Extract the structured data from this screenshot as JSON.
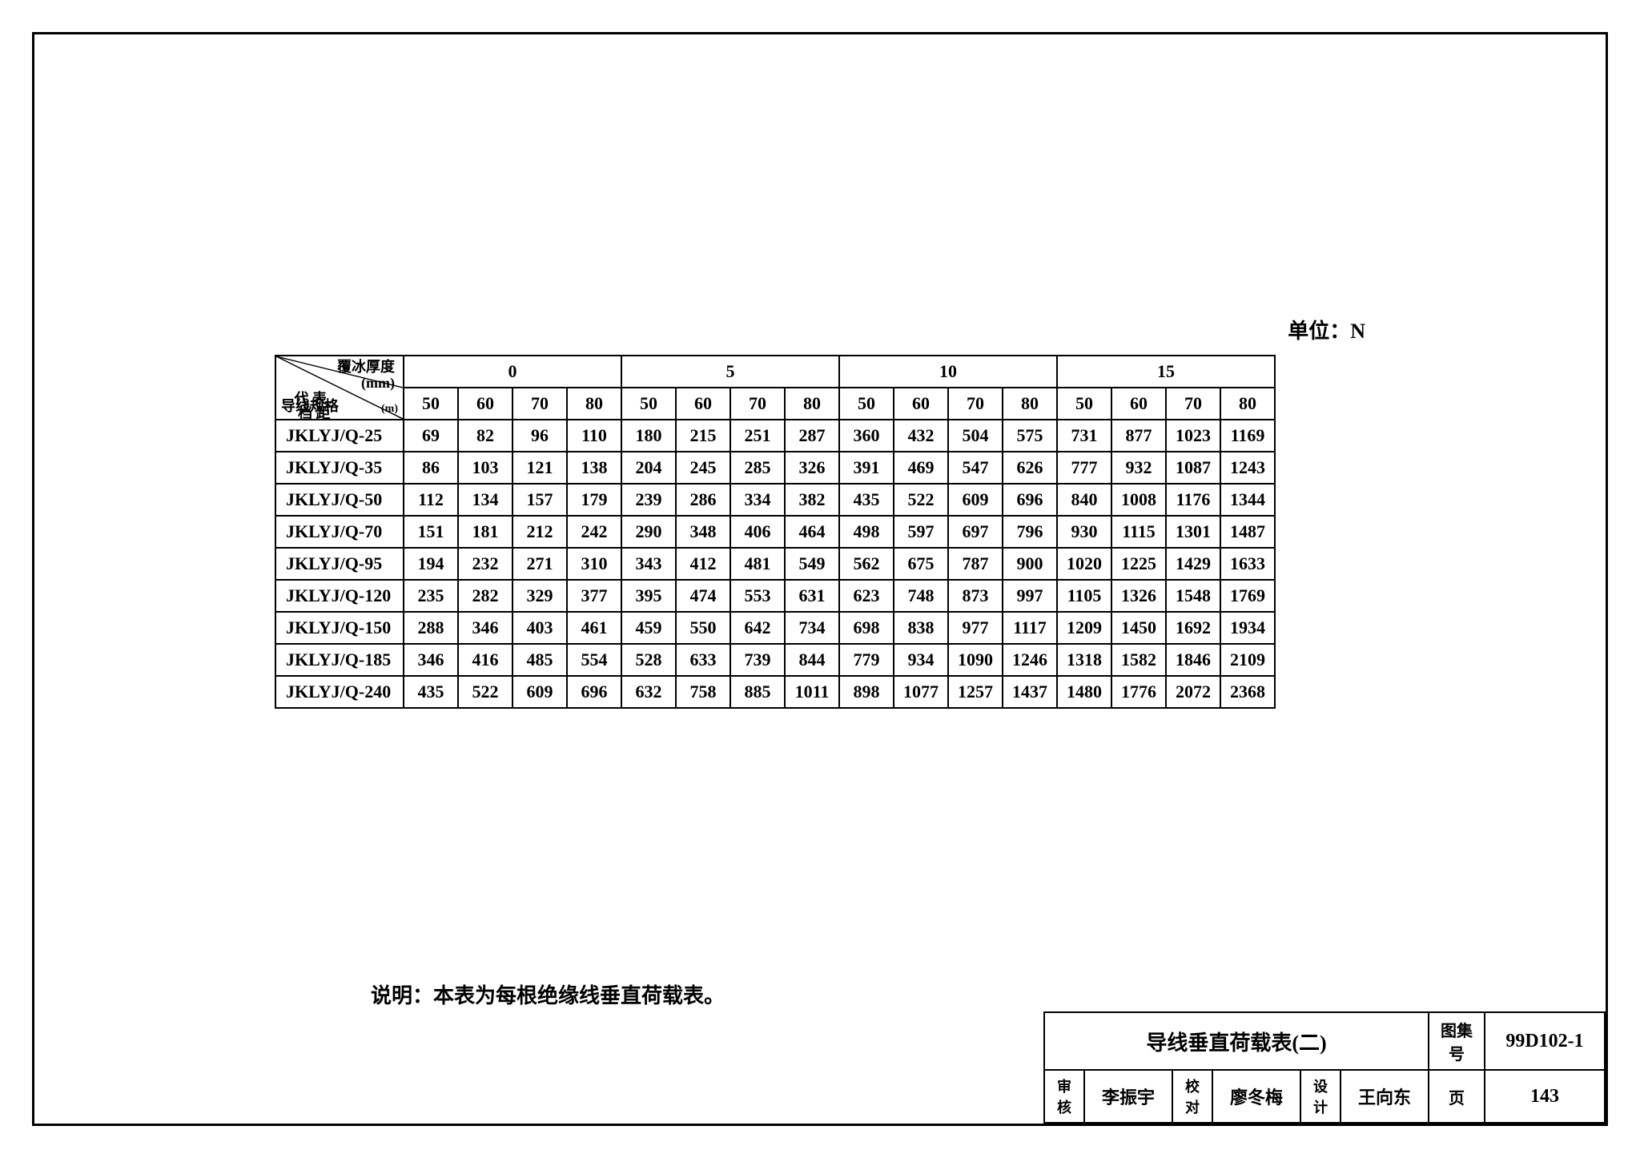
{
  "unit_label": "单位：N",
  "header": {
    "diag_top_line1": "覆冰厚度",
    "diag_top_line2": "(mm)",
    "diag_mid_line1": "代 表",
    "diag_mid_line2": "档 距",
    "diag_bot_left": "导线规格",
    "diag_bot_right": "(m)",
    "ice_groups": [
      "0",
      "5",
      "10",
      "15"
    ],
    "spans": [
      "50",
      "60",
      "70",
      "80"
    ]
  },
  "rows": [
    {
      "label": "JKLYJ/Q-25",
      "v": [
        "69",
        "82",
        "96",
        "110",
        "180",
        "215",
        "251",
        "287",
        "360",
        "432",
        "504",
        "575",
        "731",
        "877",
        "1023",
        "1169"
      ]
    },
    {
      "label": "JKLYJ/Q-35",
      "v": [
        "86",
        "103",
        "121",
        "138",
        "204",
        "245",
        "285",
        "326",
        "391",
        "469",
        "547",
        "626",
        "777",
        "932",
        "1087",
        "1243"
      ]
    },
    {
      "label": "JKLYJ/Q-50",
      "v": [
        "112",
        "134",
        "157",
        "179",
        "239",
        "286",
        "334",
        "382",
        "435",
        "522",
        "609",
        "696",
        "840",
        "1008",
        "1176",
        "1344"
      ]
    },
    {
      "label": "JKLYJ/Q-70",
      "v": [
        "151",
        "181",
        "212",
        "242",
        "290",
        "348",
        "406",
        "464",
        "498",
        "597",
        "697",
        "796",
        "930",
        "1115",
        "1301",
        "1487"
      ]
    },
    {
      "label": "JKLYJ/Q-95",
      "v": [
        "194",
        "232",
        "271",
        "310",
        "343",
        "412",
        "481",
        "549",
        "562",
        "675",
        "787",
        "900",
        "1020",
        "1225",
        "1429",
        "1633"
      ]
    },
    {
      "label": "JKLYJ/Q-120",
      "v": [
        "235",
        "282",
        "329",
        "377",
        "395",
        "474",
        "553",
        "631",
        "623",
        "748",
        "873",
        "997",
        "1105",
        "1326",
        "1548",
        "1769"
      ]
    },
    {
      "label": "JKLYJ/Q-150",
      "v": [
        "288",
        "346",
        "403",
        "461",
        "459",
        "550",
        "642",
        "734",
        "698",
        "838",
        "977",
        "1117",
        "1209",
        "1450",
        "1692",
        "1934"
      ]
    },
    {
      "label": "JKLYJ/Q-185",
      "v": [
        "346",
        "416",
        "485",
        "554",
        "528",
        "633",
        "739",
        "844",
        "779",
        "934",
        "1090",
        "1246",
        "1318",
        "1582",
        "1846",
        "2109"
      ]
    },
    {
      "label": "JKLYJ/Q-240",
      "v": [
        "435",
        "522",
        "609",
        "696",
        "632",
        "758",
        "885",
        "1011",
        "898",
        "1077",
        "1257",
        "1437",
        "1480",
        "1776",
        "2072",
        "2368"
      ]
    }
  ],
  "note": "说明：本表为每根绝缘线垂直荷载表。",
  "title_block": {
    "title": "导线垂直荷载表(二)",
    "drawing_set_label": "图集号",
    "drawing_set_value": "99D102-1",
    "review_label": "审核",
    "review_sig": "李振宇",
    "check_label": "校对",
    "check_sig": "廖冬梅",
    "design_label": "设计",
    "design_sig": "王向东",
    "page_label": "页",
    "page_value": "143"
  },
  "style": {
    "border_color": "#000000",
    "background_color": "#ffffff",
    "text_color": "#000000",
    "font_family": "SimSun",
    "header_fontsize": 22,
    "cell_fontsize": 22,
    "border_width": 2
  }
}
